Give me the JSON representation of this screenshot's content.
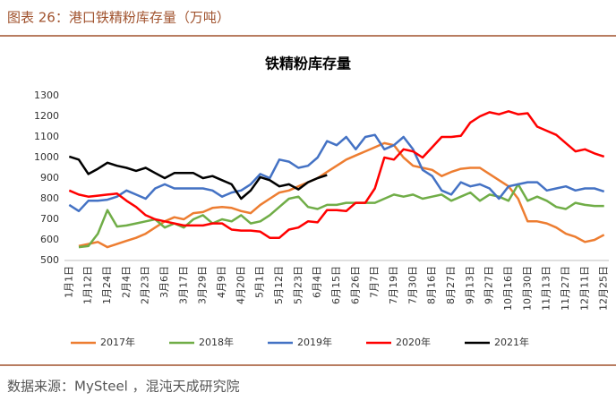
{
  "header": {
    "title": "图表 26：港口铁精粉库存量（万吨）"
  },
  "footer": {
    "source": "数据来源：MySteel ，混沌天成研究院"
  },
  "chart_data": {
    "type": "line",
    "title": "铁精粉库存量",
    "categories": [
      "1月1日",
      null,
      "1月12日",
      null,
      "1月24日",
      null,
      "2月4日",
      null,
      "2月23日",
      null,
      "3月6日",
      null,
      "3月17日",
      null,
      "3月29日",
      null,
      "4月9日",
      null,
      "4月20日",
      null,
      "5月1日",
      null,
      "5月12日",
      null,
      "5月23日",
      null,
      "6月4日",
      null,
      "6月15日",
      null,
      "6月26日",
      null,
      "7月7日",
      null,
      "7月19日",
      null,
      "7月30日",
      null,
      "8月16日",
      null,
      "8月27日",
      null,
      "9月13日",
      null,
      "9月27日",
      null,
      "10月16日",
      null,
      "10月30日",
      null,
      "11月13日",
      null,
      "11月27日",
      null,
      "12月11日",
      null,
      "12月25日"
    ],
    "series": [
      {
        "name": "2017年",
        "color": "#ed7d31",
        "values": [
          null,
          570,
          580,
          590,
          565,
          580,
          595,
          610,
          630,
          660,
          690,
          710,
          700,
          730,
          735,
          755,
          760,
          755,
          740,
          730,
          770,
          800,
          830,
          840,
          860,
          880,
          900,
          930,
          960,
          990,
          1010,
          1030,
          1050,
          1070,
          1060,
          1000,
          960,
          950,
          940,
          910,
          930,
          945,
          950,
          950,
          920,
          890,
          860,
          800,
          690,
          690,
          680,
          660,
          630,
          615,
          590,
          600,
          625
        ]
      },
      {
        "name": "2018年",
        "color": "#70ad47",
        "values": [
          null,
          565,
          570,
          630,
          745,
          665,
          670,
          680,
          690,
          700,
          660,
          680,
          660,
          700,
          720,
          680,
          700,
          690,
          720,
          680,
          690,
          720,
          760,
          800,
          810,
          760,
          750,
          770,
          770,
          780,
          780,
          780,
          780,
          800,
          820,
          810,
          820,
          800,
          810,
          820,
          790,
          810,
          830,
          790,
          820,
          810,
          790,
          870,
          790,
          810,
          790,
          760,
          750,
          780,
          770,
          765,
          765
        ]
      },
      {
        "name": "2019年",
        "color": "#4472c4",
        "values": [
          770,
          740,
          790,
          790,
          795,
          810,
          840,
          820,
          800,
          850,
          870,
          850,
          850,
          850,
          850,
          840,
          810,
          830,
          840,
          870,
          920,
          900,
          990,
          980,
          950,
          960,
          1000,
          1080,
          1060,
          1100,
          1040,
          1100,
          1110,
          1040,
          1060,
          1100,
          1040,
          940,
          910,
          840,
          820,
          880,
          860,
          870,
          850,
          800,
          860,
          870,
          880,
          880,
          840,
          850,
          860,
          840,
          850,
          850,
          835
        ]
      },
      {
        "name": "2020年",
        "color": "#ff0000",
        "values": [
          840,
          820,
          810,
          815,
          820,
          825,
          790,
          760,
          720,
          700,
          690,
          680,
          670,
          670,
          670,
          680,
          680,
          650,
          645,
          645,
          640,
          610,
          610,
          650,
          660,
          690,
          685,
          745,
          745,
          740,
          780,
          780,
          850,
          1000,
          990,
          1040,
          1030,
          1000,
          1050,
          1100,
          1100,
          1105,
          1170,
          1200,
          1220,
          1210,
          1225,
          1210,
          1215,
          1150,
          1130,
          1110,
          1070,
          1030,
          1040,
          1020,
          1005
        ]
      },
      {
        "name": "2021年",
        "color": "#000000",
        "values": [
          1005,
          990,
          920,
          945,
          975,
          960,
          950,
          935,
          950,
          925,
          900,
          925,
          925,
          925,
          900,
          910,
          890,
          870,
          800,
          840,
          905,
          890,
          860,
          870,
          845,
          880,
          900,
          915,
          null,
          null,
          null,
          null,
          null,
          null,
          null,
          null,
          null,
          null,
          null,
          null,
          null,
          null,
          null,
          null,
          null,
          null,
          null,
          null,
          null,
          null,
          null,
          null,
          null,
          null,
          null,
          null,
          null
        ]
      }
    ],
    "ylim": [
      500,
      1300
    ],
    "yticks": [
      500,
      600,
      700,
      800,
      900,
      1000,
      1100,
      1200,
      1300
    ],
    "grid": false,
    "legend": "bottom"
  }
}
